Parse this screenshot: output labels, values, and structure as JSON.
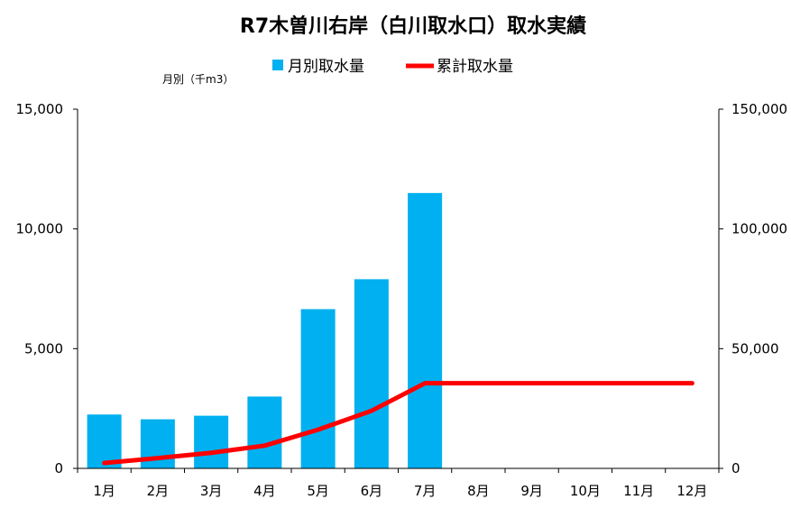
{
  "chart_data": {
    "type": "bar",
    "title": "R7木曽川右岸（白川取水口）取水実績",
    "y_unit_label": "月別（千m3）",
    "categories": [
      "1月",
      "2月",
      "3月",
      "4月",
      "5月",
      "6月",
      "7月",
      "8月",
      "9月",
      "10月",
      "11月",
      "12月"
    ],
    "series": [
      {
        "name": "月別取水量",
        "type": "bar",
        "axis": "left",
        "color": "#00B0F0",
        "values": [
          2250,
          2050,
          2200,
          3000,
          6650,
          7900,
          11500,
          null,
          null,
          null,
          null,
          null
        ]
      },
      {
        "name": "累計取水量",
        "type": "line",
        "axis": "right",
        "color": "#FF0000",
        "values": [
          2250,
          4300,
          6500,
          9500,
          16150,
          24050,
          35550,
          35550,
          35550,
          35550,
          35550,
          35550
        ]
      }
    ],
    "y_left": {
      "ylim": [
        0,
        15000
      ],
      "ticks": [
        "0",
        "5,000",
        "10,000",
        "15,000"
      ],
      "tick_values": [
        0,
        5000,
        10000,
        15000
      ]
    },
    "y_right": {
      "ylim": [
        0,
        150000
      ],
      "ticks": [
        "0",
        "50,000",
        "100,000",
        "150,000"
      ],
      "tick_values": [
        0,
        50000,
        100000,
        150000
      ]
    },
    "grid": false,
    "legend_position": "top-center"
  }
}
